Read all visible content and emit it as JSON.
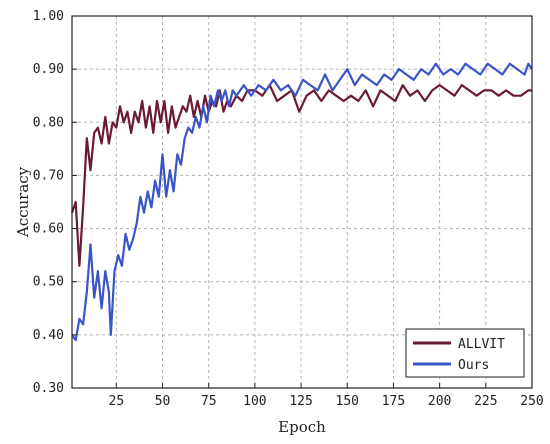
{
  "chart_data": {
    "type": "line",
    "xlabel": "Epoch",
    "ylabel": "Accuracy",
    "xlim": [
      1,
      250
    ],
    "ylim": [
      0.3,
      1.0
    ],
    "xticks": [
      25,
      50,
      75,
      100,
      125,
      150,
      175,
      200,
      225,
      250
    ],
    "yticks": [
      0.3,
      0.4,
      0.5,
      0.6,
      0.7,
      0.8,
      0.9,
      1.0
    ],
    "xtick_labels": [
      "25",
      "50",
      "75",
      "100",
      "125",
      "150",
      "175",
      "200",
      "225",
      "250"
    ],
    "ytick_labels": [
      "0.30",
      "0.40",
      "0.50",
      "0.60",
      "0.70",
      "0.80",
      "0.90",
      "1.00"
    ],
    "grid": true,
    "legend_position": "bottom-right",
    "series": [
      {
        "name": "ALLVIT",
        "color": "#6b1a33",
        "points": [
          [
            1,
            0.63
          ],
          [
            3,
            0.65
          ],
          [
            5,
            0.53
          ],
          [
            7,
            0.64
          ],
          [
            9,
            0.77
          ],
          [
            11,
            0.71
          ],
          [
            13,
            0.78
          ],
          [
            15,
            0.79
          ],
          [
            17,
            0.76
          ],
          [
            19,
            0.81
          ],
          [
            21,
            0.76
          ],
          [
            23,
            0.8
          ],
          [
            25,
            0.79
          ],
          [
            27,
            0.83
          ],
          [
            29,
            0.8
          ],
          [
            31,
            0.82
          ],
          [
            33,
            0.78
          ],
          [
            35,
            0.82
          ],
          [
            37,
            0.8
          ],
          [
            39,
            0.84
          ],
          [
            41,
            0.79
          ],
          [
            43,
            0.83
          ],
          [
            45,
            0.78
          ],
          [
            47,
            0.84
          ],
          [
            49,
            0.8
          ],
          [
            51,
            0.84
          ],
          [
            53,
            0.78
          ],
          [
            55,
            0.83
          ],
          [
            57,
            0.79
          ],
          [
            59,
            0.81
          ],
          [
            61,
            0.83
          ],
          [
            63,
            0.82
          ],
          [
            65,
            0.85
          ],
          [
            67,
            0.81
          ],
          [
            69,
            0.84
          ],
          [
            71,
            0.81
          ],
          [
            73,
            0.85
          ],
          [
            75,
            0.82
          ],
          [
            77,
            0.84
          ],
          [
            79,
            0.83
          ],
          [
            81,
            0.86
          ],
          [
            83,
            0.82
          ],
          [
            85,
            0.84
          ],
          [
            87,
            0.83
          ],
          [
            90,
            0.85
          ],
          [
            93,
            0.84
          ],
          [
            96,
            0.86
          ],
          [
            100,
            0.86
          ],
          [
            104,
            0.85
          ],
          [
            108,
            0.87
          ],
          [
            112,
            0.84
          ],
          [
            116,
            0.85
          ],
          [
            120,
            0.86
          ],
          [
            124,
            0.82
          ],
          [
            128,
            0.85
          ],
          [
            132,
            0.86
          ],
          [
            136,
            0.84
          ],
          [
            140,
            0.86
          ],
          [
            144,
            0.85
          ],
          [
            148,
            0.84
          ],
          [
            152,
            0.85
          ],
          [
            156,
            0.84
          ],
          [
            160,
            0.86
          ],
          [
            164,
            0.83
          ],
          [
            168,
            0.86
          ],
          [
            172,
            0.85
          ],
          [
            176,
            0.84
          ],
          [
            180,
            0.87
          ],
          [
            184,
            0.85
          ],
          [
            188,
            0.86
          ],
          [
            192,
            0.84
          ],
          [
            196,
            0.86
          ],
          [
            200,
            0.87
          ],
          [
            204,
            0.86
          ],
          [
            208,
            0.85
          ],
          [
            212,
            0.87
          ],
          [
            216,
            0.86
          ],
          [
            220,
            0.85
          ],
          [
            224,
            0.86
          ],
          [
            228,
            0.86
          ],
          [
            232,
            0.85
          ],
          [
            236,
            0.86
          ],
          [
            240,
            0.85
          ],
          [
            244,
            0.85
          ],
          [
            248,
            0.86
          ],
          [
            250,
            0.86
          ]
        ]
      },
      {
        "name": "Ours",
        "color": "#3a55c8",
        "points": [
          [
            1,
            0.4
          ],
          [
            3,
            0.39
          ],
          [
            5,
            0.43
          ],
          [
            7,
            0.42
          ],
          [
            9,
            0.48
          ],
          [
            11,
            0.57
          ],
          [
            13,
            0.47
          ],
          [
            15,
            0.52
          ],
          [
            17,
            0.45
          ],
          [
            19,
            0.52
          ],
          [
            21,
            0.48
          ],
          [
            22,
            0.4
          ],
          [
            24,
            0.52
          ],
          [
            26,
            0.55
          ],
          [
            28,
            0.53
          ],
          [
            30,
            0.59
          ],
          [
            32,
            0.56
          ],
          [
            34,
            0.58
          ],
          [
            36,
            0.61
          ],
          [
            38,
            0.66
          ],
          [
            40,
            0.63
          ],
          [
            42,
            0.67
          ],
          [
            44,
            0.64
          ],
          [
            46,
            0.69
          ],
          [
            48,
            0.66
          ],
          [
            50,
            0.74
          ],
          [
            52,
            0.66
          ],
          [
            54,
            0.71
          ],
          [
            56,
            0.67
          ],
          [
            58,
            0.74
          ],
          [
            60,
            0.72
          ],
          [
            62,
            0.77
          ],
          [
            64,
            0.79
          ],
          [
            66,
            0.78
          ],
          [
            68,
            0.81
          ],
          [
            70,
            0.79
          ],
          [
            72,
            0.83
          ],
          [
            74,
            0.8
          ],
          [
            76,
            0.85
          ],
          [
            78,
            0.83
          ],
          [
            80,
            0.86
          ],
          [
            82,
            0.84
          ],
          [
            84,
            0.86
          ],
          [
            86,
            0.83
          ],
          [
            88,
            0.86
          ],
          [
            90,
            0.85
          ],
          [
            94,
            0.87
          ],
          [
            98,
            0.85
          ],
          [
            102,
            0.87
          ],
          [
            106,
            0.86
          ],
          [
            110,
            0.88
          ],
          [
            114,
            0.86
          ],
          [
            118,
            0.87
          ],
          [
            122,
            0.85
          ],
          [
            126,
            0.88
          ],
          [
            130,
            0.87
          ],
          [
            134,
            0.86
          ],
          [
            138,
            0.89
          ],
          [
            142,
            0.86
          ],
          [
            146,
            0.88
          ],
          [
            150,
            0.9
          ],
          [
            154,
            0.87
          ],
          [
            158,
            0.89
          ],
          [
            162,
            0.88
          ],
          [
            166,
            0.87
          ],
          [
            170,
            0.89
          ],
          [
            174,
            0.88
          ],
          [
            178,
            0.9
          ],
          [
            182,
            0.89
          ],
          [
            186,
            0.88
          ],
          [
            190,
            0.9
          ],
          [
            194,
            0.89
          ],
          [
            198,
            0.91
          ],
          [
            202,
            0.89
          ],
          [
            206,
            0.9
          ],
          [
            210,
            0.89
          ],
          [
            214,
            0.91
          ],
          [
            218,
            0.9
          ],
          [
            222,
            0.89
          ],
          [
            226,
            0.91
          ],
          [
            230,
            0.9
          ],
          [
            234,
            0.89
          ],
          [
            238,
            0.91
          ],
          [
            242,
            0.9
          ],
          [
            246,
            0.89
          ],
          [
            248,
            0.91
          ],
          [
            250,
            0.9
          ]
        ]
      }
    ]
  }
}
